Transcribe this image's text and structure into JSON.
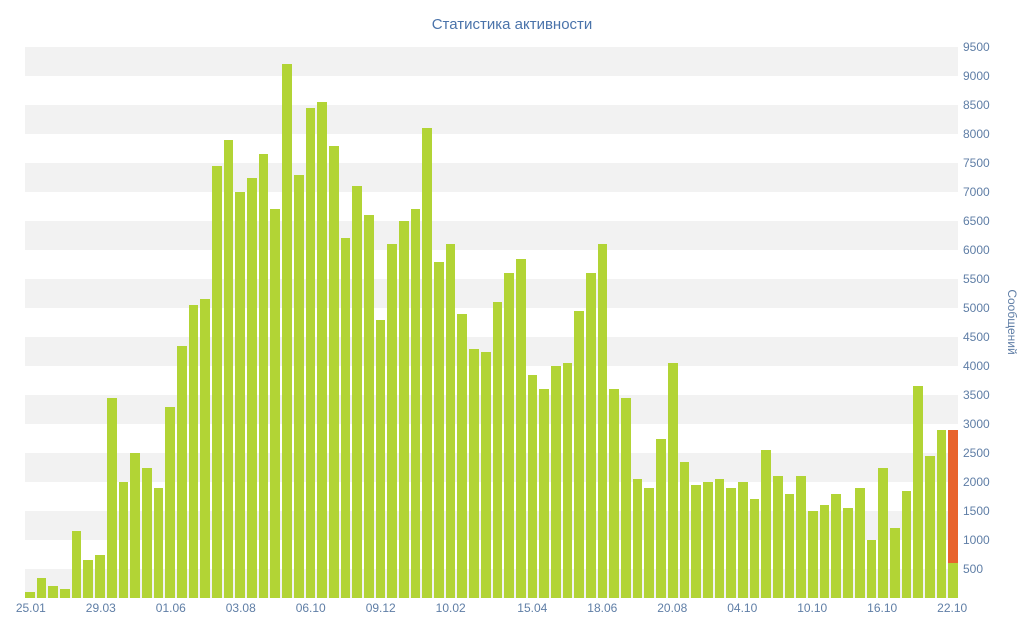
{
  "chart_data": {
    "type": "bar",
    "title": "Статистика активности",
    "ylabel": "Сообщений",
    "xlabel": "",
    "ylim": [
      0,
      9500
    ],
    "ytick_step": 500,
    "ytick_labels": [
      500,
      1000,
      1500,
      2000,
      2500,
      3000,
      3500,
      4000,
      4500,
      5000,
      5500,
      6000,
      6500,
      7000,
      7500,
      8000,
      8500,
      9000,
      9500
    ],
    "x_tick_labels": [
      "25.01",
      "29.03",
      "01.06",
      "03.08",
      "06.10",
      "09.12",
      "10.02",
      "15.04",
      "18.06",
      "20.08",
      "04.10",
      "10.10",
      "16.10",
      "22.10"
    ],
    "x_tick_positions": [
      0,
      6,
      12,
      18,
      24,
      30,
      36,
      43,
      49,
      55,
      61,
      67,
      73,
      79
    ],
    "values": [
      100,
      350,
      200,
      150,
      1150,
      650,
      750,
      3450,
      2000,
      2500,
      2250,
      1900,
      3300,
      4350,
      5050,
      5150,
      7450,
      7900,
      7000,
      7250,
      7650,
      6700,
      9200,
      7300,
      8450,
      8550,
      7800,
      6200,
      7100,
      6600,
      4800,
      6100,
      6500,
      6700,
      8100,
      5800,
      6100,
      4900,
      4300,
      4250,
      5100,
      5600,
      5850,
      3850,
      3600,
      4000,
      4050,
      4950,
      5600,
      6100,
      3600,
      3450,
      2050,
      1900,
      2750,
      4050,
      2350,
      1950,
      2000,
      2050,
      1900,
      2000,
      1700,
      2550,
      2100,
      1800,
      2100,
      1500,
      1600,
      1800,
      1550,
      1900,
      1000,
      2250,
      1200,
      1850,
      3650,
      2450,
      2900,
      2900
    ],
    "bar_color": "#b2d435",
    "highlight": {
      "index": 79,
      "color": "#e8632c",
      "green_base": 600
    },
    "grid": "striped-horizontal-bands",
    "stripe_colors": [
      "#f2f2f2",
      "#ffffff"
    ],
    "legend_position": "none",
    "title_color": "#4a73aa",
    "tick_color": "#5f7ea6"
  }
}
